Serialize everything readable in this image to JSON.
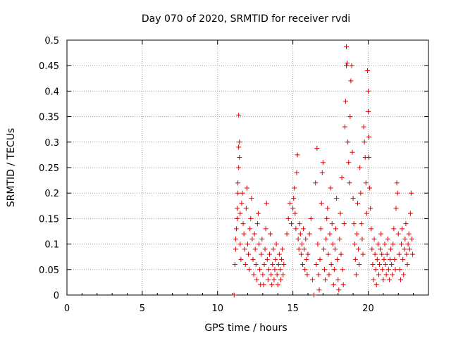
{
  "chart_data": {
    "type": "scatter",
    "title": "Day 070 of 2020, SRMTID for receiver rvdi",
    "xlabel": "GPS time / hours",
    "ylabel": "SRMTID / TECUs",
    "xlim": [
      0,
      24
    ],
    "ylim": [
      0,
      0.5
    ],
    "xticks": [
      0,
      5,
      10,
      15,
      20
    ],
    "yticks": [
      0,
      0.05,
      0.1,
      0.15,
      0.2,
      0.25,
      0.3,
      0.35,
      0.4,
      0.45,
      0.5
    ],
    "xtick_labels": [
      "0",
      "5",
      "10",
      "15",
      "20"
    ],
    "ytick_labels": [
      "0",
      "0.05",
      "0.1",
      "0.15",
      "0.2",
      "0.25",
      "0.3",
      "0.35",
      "0.4",
      "0.45",
      "0.5"
    ],
    "grid": true,
    "legend": "none",
    "marker": "+",
    "series_color": "#e00000",
    "series": [
      {
        "points": [
          [
            11.1,
            0.0
          ],
          [
            11.15,
            0.06
          ],
          [
            11.2,
            0.09
          ],
          [
            11.2,
            0.11
          ],
          [
            11.25,
            0.13
          ],
          [
            11.3,
            0.15
          ],
          [
            11.3,
            0.17
          ],
          [
            11.35,
            0.2
          ],
          [
            11.35,
            0.22
          ],
          [
            11.4,
            0.25
          ],
          [
            11.4,
            0.29
          ],
          [
            11.45,
            0.3
          ],
          [
            11.4,
            0.353
          ],
          [
            11.45,
            0.27
          ],
          [
            11.5,
            0.16
          ],
          [
            11.5,
            0.1
          ],
          [
            11.55,
            0.07
          ],
          [
            11.6,
            0.18
          ],
          [
            11.65,
            0.2
          ],
          [
            11.7,
            0.14
          ],
          [
            11.75,
            0.12
          ],
          [
            11.8,
            0.09
          ],
          [
            11.85,
            0.06
          ],
          [
            11.9,
            0.17
          ],
          [
            11.95,
            0.21
          ],
          [
            12.0,
            0.1
          ],
          [
            12.05,
            0.08
          ],
          [
            12.1,
            0.05
          ],
          [
            12.15,
            0.13
          ],
          [
            12.2,
            0.15
          ],
          [
            12.25,
            0.19
          ],
          [
            12.3,
            0.11
          ],
          [
            12.35,
            0.07
          ],
          [
            12.4,
            0.04
          ],
          [
            12.45,
            0.12
          ],
          [
            12.5,
            0.09
          ],
          [
            12.55,
            0.06
          ],
          [
            12.6,
            0.03
          ],
          [
            12.65,
            0.14
          ],
          [
            12.7,
            0.16
          ],
          [
            12.75,
            0.1
          ],
          [
            12.8,
            0.05
          ],
          [
            12.85,
            0.02
          ],
          [
            12.9,
            0.08
          ],
          [
            12.95,
            0.11
          ],
          [
            13.0,
            0.04
          ],
          [
            13.05,
            0.02
          ],
          [
            13.1,
            0.06
          ],
          [
            13.15,
            0.09
          ],
          [
            13.2,
            0.13
          ],
          [
            13.25,
            0.18
          ],
          [
            13.3,
            0.07
          ],
          [
            13.35,
            0.03
          ],
          [
            13.4,
            0.05
          ],
          [
            13.45,
            0.08
          ],
          [
            13.5,
            0.12
          ],
          [
            13.55,
            0.04
          ],
          [
            13.6,
            0.02
          ],
          [
            13.65,
            0.06
          ],
          [
            13.7,
            0.09
          ],
          [
            13.75,
            0.03
          ],
          [
            13.8,
            0.05
          ],
          [
            13.85,
            0.07
          ],
          [
            13.9,
            0.1
          ],
          [
            13.95,
            0.04
          ],
          [
            14.0,
            0.02
          ],
          [
            14.05,
            0.06
          ],
          [
            14.1,
            0.08
          ],
          [
            14.15,
            0.05
          ],
          [
            14.2,
            0.03
          ],
          [
            14.25,
            0.07
          ],
          [
            14.3,
            0.09
          ],
          [
            14.35,
            0.04
          ],
          [
            14.4,
            0.06
          ],
          [
            14.6,
            0.12
          ],
          [
            14.7,
            0.15
          ],
          [
            14.8,
            0.18
          ],
          [
            14.9,
            0.14
          ],
          [
            15.0,
            0.17
          ],
          [
            15.05,
            0.19
          ],
          [
            15.1,
            0.21
          ],
          [
            15.15,
            0.16
          ],
          [
            15.2,
            0.13
          ],
          [
            15.25,
            0.24
          ],
          [
            15.3,
            0.275
          ],
          [
            15.35,
            0.11
          ],
          [
            15.4,
            0.09
          ],
          [
            15.45,
            0.14
          ],
          [
            15.5,
            0.12
          ],
          [
            15.55,
            0.08
          ],
          [
            15.6,
            0.1
          ],
          [
            15.65,
            0.06
          ],
          [
            15.7,
            0.13
          ],
          [
            15.75,
            0.09
          ],
          [
            15.8,
            0.05
          ],
          [
            15.85,
            0.11
          ],
          [
            15.9,
            0.07
          ],
          [
            15.95,
            0.04
          ],
          [
            16.0,
            0.08
          ],
          [
            16.1,
            0.12
          ],
          [
            16.2,
            0.15
          ],
          [
            16.3,
            0.03
          ],
          [
            16.4,
            0.0
          ],
          [
            16.5,
            0.22
          ],
          [
            16.55,
            0.06
          ],
          [
            16.6,
            0.288
          ],
          [
            16.65,
            0.1
          ],
          [
            16.7,
            0.04
          ],
          [
            16.75,
            0.01
          ],
          [
            16.8,
            0.07
          ],
          [
            16.85,
            0.13
          ],
          [
            16.9,
            0.18
          ],
          [
            16.95,
            0.24
          ],
          [
            17.0,
            0.26
          ],
          [
            17.05,
            0.09
          ],
          [
            17.1,
            0.05
          ],
          [
            17.15,
            0.03
          ],
          [
            17.2,
            0.11
          ],
          [
            17.25,
            0.15
          ],
          [
            17.3,
            0.17
          ],
          [
            17.35,
            0.08
          ],
          [
            17.4,
            0.04
          ],
          [
            17.45,
            0.12
          ],
          [
            17.5,
            0.21
          ],
          [
            17.55,
            0.06
          ],
          [
            17.6,
            0.14
          ],
          [
            17.65,
            0.1
          ],
          [
            17.7,
            0.02
          ],
          [
            17.75,
            0.05
          ],
          [
            17.8,
            0.09
          ],
          [
            17.85,
            0.13
          ],
          [
            17.9,
            0.19
          ],
          [
            17.95,
            0.07
          ],
          [
            18.0,
            0.03
          ],
          [
            18.05,
            0.01
          ],
          [
            18.1,
            0.11
          ],
          [
            18.15,
            0.16
          ],
          [
            18.2,
            0.08
          ],
          [
            18.25,
            0.23
          ],
          [
            18.3,
            0.05
          ],
          [
            18.35,
            0.02
          ],
          [
            18.4,
            0.14
          ],
          [
            18.45,
            0.33
          ],
          [
            18.5,
            0.38
          ],
          [
            18.55,
            0.45
          ],
          [
            18.55,
            0.487
          ],
          [
            18.6,
            0.455
          ],
          [
            18.65,
            0.3
          ],
          [
            18.7,
            0.26
          ],
          [
            18.75,
            0.22
          ],
          [
            18.8,
            0.35
          ],
          [
            18.85,
            0.42
          ],
          [
            18.9,
            0.45
          ],
          [
            18.95,
            0.28
          ],
          [
            19.0,
            0.19
          ],
          [
            19.05,
            0.14
          ],
          [
            19.1,
            0.1
          ],
          [
            19.15,
            0.07
          ],
          [
            19.2,
            0.04
          ],
          [
            19.25,
            0.12
          ],
          [
            19.3,
            0.18
          ],
          [
            19.35,
            0.09
          ],
          [
            19.4,
            0.06
          ],
          [
            19.45,
            0.25
          ],
          [
            19.5,
            0.2
          ],
          [
            19.55,
            0.14
          ],
          [
            19.6,
            0.11
          ],
          [
            19.65,
            0.08
          ],
          [
            19.7,
            0.33
          ],
          [
            19.75,
            0.3
          ],
          [
            19.8,
            0.27
          ],
          [
            19.85,
            0.22
          ],
          [
            19.9,
            0.16
          ],
          [
            19.95,
            0.44
          ],
          [
            20.0,
            0.4
          ],
          [
            20.0,
            0.36
          ],
          [
            20.05,
            0.31
          ],
          [
            20.05,
            0.27
          ],
          [
            20.1,
            0.21
          ],
          [
            20.15,
            0.17
          ],
          [
            20.2,
            0.13
          ],
          [
            20.25,
            0.09
          ],
          [
            20.3,
            0.06
          ],
          [
            20.35,
            0.03
          ],
          [
            20.4,
            0.11
          ],
          [
            20.45,
            0.08
          ],
          [
            20.5,
            0.05
          ],
          [
            20.55,
            0.02
          ],
          [
            20.6,
            0.07
          ],
          [
            20.65,
            0.1
          ],
          [
            20.7,
            0.04
          ],
          [
            20.75,
            0.06
          ],
          [
            20.8,
            0.09
          ],
          [
            20.85,
            0.12
          ],
          [
            20.9,
            0.08
          ],
          [
            20.95,
            0.05
          ],
          [
            21.0,
            0.03
          ],
          [
            21.05,
            0.07
          ],
          [
            21.1,
            0.1
          ],
          [
            21.15,
            0.06
          ],
          [
            21.2,
            0.04
          ],
          [
            21.25,
            0.08
          ],
          [
            21.3,
            0.11
          ],
          [
            21.35,
            0.05
          ],
          [
            21.4,
            0.03
          ],
          [
            21.45,
            0.07
          ],
          [
            21.5,
            0.09
          ],
          [
            21.55,
            0.06
          ],
          [
            21.6,
            0.04
          ],
          [
            21.65,
            0.1
          ],
          [
            21.7,
            0.13
          ],
          [
            21.75,
            0.07
          ],
          [
            21.8,
            0.05
          ],
          [
            21.85,
            0.17
          ],
          [
            21.9,
            0.22
          ],
          [
            21.95,
            0.2
          ],
          [
            22.0,
            0.12
          ],
          [
            22.05,
            0.08
          ],
          [
            22.1,
            0.05
          ],
          [
            22.15,
            0.03
          ],
          [
            22.2,
            0.1
          ],
          [
            22.25,
            0.13
          ],
          [
            22.3,
            0.07
          ],
          [
            22.35,
            0.04
          ],
          [
            22.4,
            0.09
          ],
          [
            22.45,
            0.11
          ],
          [
            22.5,
            0.14
          ],
          [
            22.55,
            0.08
          ],
          [
            22.6,
            0.06
          ],
          [
            22.65,
            0.1
          ],
          [
            22.7,
            0.12
          ],
          [
            22.75,
            0.09
          ],
          [
            22.8,
            0.16
          ],
          [
            22.85,
            0.2
          ],
          [
            22.9,
            0.11
          ],
          [
            22.95,
            0.08
          ]
        ]
      }
    ]
  }
}
